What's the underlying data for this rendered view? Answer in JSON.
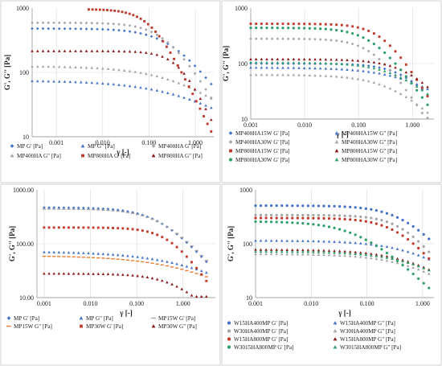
{
  "figure": {
    "background": "#ffffff",
    "marker_colors": {
      "blue": "#4472c4",
      "red": "#c0392b",
      "gray": "#a5a5a5",
      "darkred": "#8b1a1a",
      "orange": "#ed7d31",
      "gold": "#e0b84a",
      "green": "#2e9e6b",
      "teal": "#3aa39a"
    }
  },
  "chart_data": [
    {
      "id": "panel_a",
      "type": "scatter",
      "x_scale": "log",
      "y_scale": "log",
      "xlim": [
        0.0003,
        2.5
      ],
      "ylim": [
        10,
        1000
      ],
      "xticks": [
        "0.001",
        "0.010",
        "0.100",
        "1.000"
      ],
      "yticks": [
        "10",
        "100",
        "1000"
      ],
      "xlabel": "γ [-]",
      "ylabel": "G', G'' [Pa]",
      "grid": true,
      "legend_position": "bottom",
      "series": [
        {
          "name": "MP G' [Pa]",
          "marker": "diamond",
          "color": "#4472c4",
          "plateau": 480,
          "gamma_c": 0.35,
          "n": 1.0,
          "x_start": 0.0003,
          "x_end": 2.2
        },
        {
          "name": "MP G\" [Pa]",
          "marker": "triangle",
          "color": "#4472c4",
          "plateau": 75,
          "gamma_c": 0.8,
          "n": 0.5,
          "x_start": 0.0003,
          "x_end": 2.2
        },
        {
          "name": "MP400HA G' [Pa]",
          "marker": "diamond",
          "color": "#a5a5a5",
          "plateau": 590,
          "gamma_c": 0.25,
          "n": 1.2,
          "x_start": 0.0003,
          "x_end": 2.2
        },
        {
          "name": "MP400HA G\" [Pa]",
          "marker": "triangle",
          "color": "#a5a5a5",
          "plateau": 125,
          "gamma_c": 0.6,
          "n": 0.6,
          "x_start": 0.0003,
          "x_end": 2.2
        },
        {
          "name": "MP800HA G' [Pa]",
          "marker": "square",
          "color": "#c0392b",
          "plateau": 960,
          "gamma_c": 0.12,
          "n": 1.5,
          "x_start": 0.005,
          "x_end": 2.2
        },
        {
          "name": "MP800HA G\" [Pa]",
          "marker": "triangle",
          "color": "#8b1a1a",
          "plateau": 215,
          "gamma_c": 0.5,
          "n": 1.6,
          "x_start": 0.0003,
          "x_end": 2.2
        }
      ]
    },
    {
      "id": "panel_b",
      "type": "scatter",
      "x_scale": "log",
      "y_scale": "log",
      "xlim": [
        0.001,
        2.5
      ],
      "ylim": [
        10,
        1000
      ],
      "xticks": [
        "0.001",
        "0.010",
        "0.100",
        "1.000"
      ],
      "yticks": [
        "10",
        "100",
        "1000"
      ],
      "xlabel": "γ [-]",
      "ylabel": "G', G'' [Pa]",
      "grid": true,
      "legend_position": "bottom",
      "series": [
        {
          "name": "MP400HA15W G' [Pa]",
          "marker": "diamond",
          "color": "#4472c4",
          "plateau": 100,
          "gamma_c": 0.9,
          "n": 1.3,
          "x_start": 0.001,
          "x_end": 1.9
        },
        {
          "name": "MP400HA15W G\" [Pa]",
          "marker": "triangle",
          "color": "#4472c4",
          "plateau": 85,
          "gamma_c": 1.2,
          "n": 0.8,
          "x_start": 0.001,
          "x_end": 1.9
        },
        {
          "name": "MP400HA30W G' [Pa]",
          "marker": "diamond",
          "color": "#a5a5a5",
          "plateau": 280,
          "gamma_c": 0.2,
          "n": 1.5,
          "x_start": 0.001,
          "x_end": 1.9
        },
        {
          "name": "MP400HA30W G\" [Pa]",
          "marker": "triangle",
          "color": "#a5a5a5",
          "plateau": 63,
          "gamma_c": 0.5,
          "n": 1.0,
          "x_start": 0.001,
          "x_end": 1.9
        },
        {
          "name": "MP800HA15W G' [Pa]",
          "marker": "square",
          "color": "#c0392b",
          "plateau": 520,
          "gamma_c": 0.3,
          "n": 1.6,
          "x_start": 0.001,
          "x_end": 1.9
        },
        {
          "name": "MP800HA15W G\" [Pa]",
          "marker": "triangle",
          "color": "#8b1a1a",
          "plateau": 120,
          "gamma_c": 1.0,
          "n": 1.2,
          "x_start": 0.001,
          "x_end": 1.9
        },
        {
          "name": "MP800HA30W G' [Pa]",
          "marker": "circle",
          "color": "#2e9e6b",
          "plateau": 440,
          "gamma_c": 0.2,
          "n": 1.4,
          "x_start": 0.001,
          "x_end": 1.9
        },
        {
          "name": "MP800HA30W G\" [Pa]",
          "marker": "triangle",
          "color": "#2e9e6b",
          "plateau": 105,
          "gamma_c": 0.7,
          "n": 1.0,
          "x_start": 0.001,
          "x_end": 1.9
        }
      ]
    },
    {
      "id": "panel_c",
      "type": "scatter",
      "x_scale": "log",
      "y_scale": "log",
      "xlim": [
        0.0007,
        5
      ],
      "ylim": [
        10,
        1000
      ],
      "xticks": [
        "0.001",
        "0.010",
        "0.100",
        "1.000"
      ],
      "yticks": [
        "10.00",
        "100.00",
        "1000.00"
      ],
      "xlabel": "γ [-]",
      "ylabel": "G', G'' [Pa]",
      "grid": true,
      "legend_position": "bottom",
      "series": [
        {
          "name": "MP G' [Pa]",
          "marker": "diamond",
          "color": "#4472c4",
          "plateau": 470,
          "gamma_c": 0.35,
          "n": 1.0,
          "x_start": 0.001,
          "x_end": 3.2
        },
        {
          "name": "MP G\" [Pa]",
          "marker": "triangle",
          "color": "#4472c4",
          "plateau": 72,
          "gamma_c": 1.5,
          "n": 0.5,
          "x_start": 0.001,
          "x_end": 3.2
        },
        {
          "name": "MP15W G' [Pa]",
          "marker": "dash",
          "color": "#a5a5a5",
          "plateau": 440,
          "gamma_c": 0.4,
          "n": 1.0,
          "x_start": 0.001,
          "x_end": 3.2
        },
        {
          "name": "MP15W G\" [Pa]",
          "marker": "dash",
          "color": "#ed7d31",
          "plateau": 60,
          "gamma_c": 1.5,
          "n": 0.5,
          "x_start": 0.001,
          "x_end": 3.2
        },
        {
          "name": "MP30W G' [Pa]",
          "marker": "square",
          "color": "#c0392b",
          "plateau": 200,
          "gamma_c": 0.6,
          "n": 1.3,
          "x_start": 0.001,
          "x_end": 3.2
        },
        {
          "name": "MP30W G\" [Pa]",
          "marker": "triangle",
          "color": "#8b1a1a",
          "plateau": 28,
          "gamma_c": 1.0,
          "n": 1.0,
          "x_start": 0.001,
          "x_end": 3.2
        }
      ]
    },
    {
      "id": "panel_d",
      "type": "scatter",
      "x_scale": "log",
      "y_scale": "log",
      "xlim": [
        0.001,
        1.6
      ],
      "ylim": [
        10,
        1000
      ],
      "xticks": [
        "0.001",
        "0.010",
        "0.100",
        "1.000"
      ],
      "yticks": [
        "10",
        "100",
        "1000"
      ],
      "xlabel": "γ [-]",
      "ylabel": "G', G'' [Pa]",
      "grid": true,
      "legend_position": "bottom",
      "series": [
        {
          "name": "W15HA400MP G' [Pa]",
          "marker": "circle",
          "color": "#4472c4",
          "plateau": 510,
          "gamma_c": 0.5,
          "n": 1.2,
          "x_start": 0.001,
          "x_end": 1.3
        },
        {
          "name": "W15HA400MP G\" [Pa]",
          "marker": "triangle",
          "color": "#4472c4",
          "plateau": 115,
          "gamma_c": 1.0,
          "n": 0.8,
          "x_start": 0.001,
          "x_end": 1.3
        },
        {
          "name": "W30HA400MP G' [Pa]",
          "marker": "circle",
          "color": "#a5a5a5",
          "plateau": 340,
          "gamma_c": 0.5,
          "n": 1.4,
          "x_start": 0.001,
          "x_end": 1.3
        },
        {
          "name": "W30HA400MP G\" [Pa]",
          "marker": "triangle",
          "color": "#a5a5a5",
          "plateau": 65,
          "gamma_c": 0.9,
          "n": 0.8,
          "x_start": 0.001,
          "x_end": 1.3
        },
        {
          "name": "W15HA800MP G' [Pa]",
          "marker": "circle",
          "color": "#c0392b",
          "plateau": 300,
          "gamma_c": 0.4,
          "n": 1.3,
          "x_start": 0.001,
          "x_end": 1.3
        },
        {
          "name": "W15HA800MP G\" [Pa]",
          "marker": "triangle",
          "color": "#8b1a1a",
          "plateau": 78,
          "gamma_c": 0.9,
          "n": 0.8,
          "x_start": 0.001,
          "x_end": 1.3
        },
        {
          "name": "W3015HA800MP G' [Pa]",
          "marker": "circle",
          "color": "#2e9e6b",
          "plateau": 260,
          "gamma_c": 0.08,
          "n": 1.0,
          "x_start": 0.001,
          "x_end": 1.3
        },
        {
          "name": "W3015HA800MP G\" [Pa]",
          "marker": "triangle",
          "color": "#2e9e6b",
          "plateau": 72,
          "gamma_c": 1.0,
          "n": 0.8,
          "x_start": 0.001,
          "x_end": 1.3
        }
      ]
    }
  ]
}
